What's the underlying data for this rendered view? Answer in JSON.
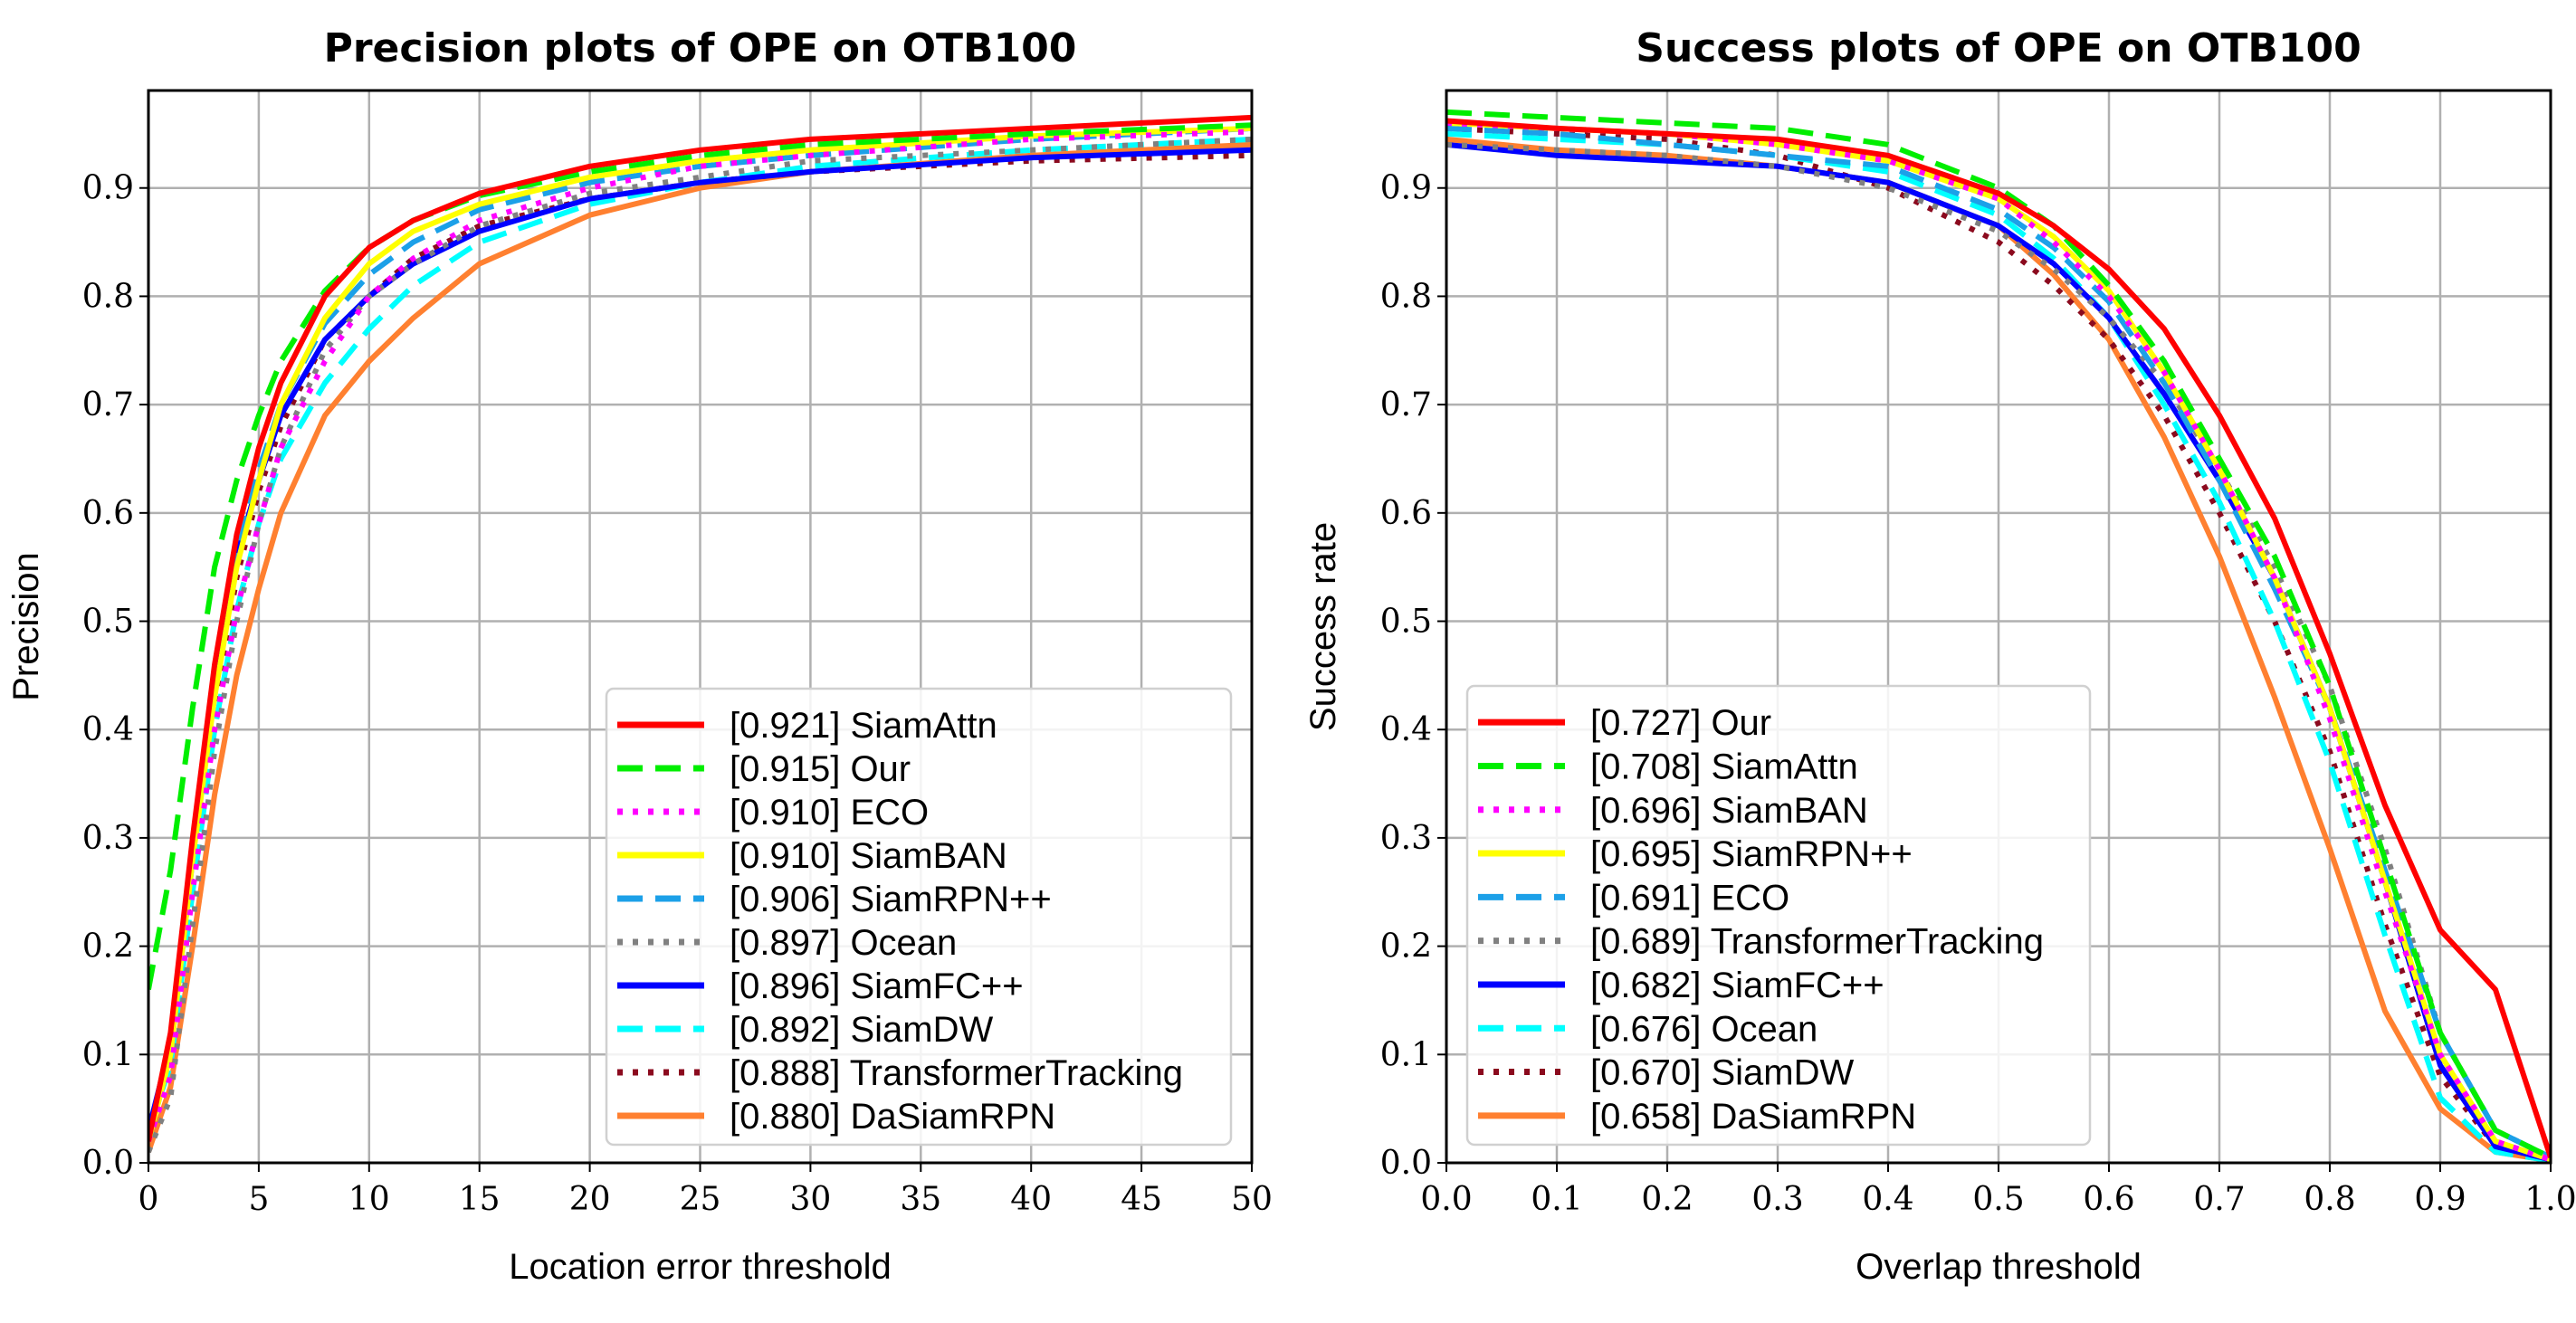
{
  "chart_data": [
    {
      "type": "line",
      "title": "Precision plots of OPE on OTB100",
      "xlabel": "Location error threshold",
      "ylabel": "Precision",
      "xlim": [
        0,
        50
      ],
      "ylim": [
        0,
        0.99
      ],
      "xticks": [
        "0",
        "5",
        "10",
        "15",
        "20",
        "25",
        "30",
        "35",
        "40",
        "45",
        "50"
      ],
      "xtick_values": [
        0,
        5,
        10,
        15,
        20,
        25,
        30,
        35,
        40,
        45,
        50
      ],
      "yticks": [
        "0.0",
        "0.1",
        "0.2",
        "0.3",
        "0.4",
        "0.5",
        "0.6",
        "0.7",
        "0.8",
        "0.9"
      ],
      "ytick_values": [
        0,
        0.1,
        0.2,
        0.3,
        0.4,
        0.5,
        0.6,
        0.7,
        0.8,
        0.9
      ],
      "grid": true,
      "legend_position": "lower-right",
      "x": [
        0,
        1,
        2,
        3,
        4,
        5,
        6,
        8,
        10,
        12,
        15,
        20,
        25,
        30,
        40,
        50
      ],
      "series": [
        {
          "name": "[0.921] SiamAttn",
          "color": "#ff0000",
          "style": "solid",
          "values": [
            0.02,
            0.12,
            0.3,
            0.46,
            0.58,
            0.66,
            0.72,
            0.8,
            0.845,
            0.87,
            0.895,
            0.92,
            0.935,
            0.945,
            0.955,
            0.965
          ]
        },
        {
          "name": "[0.915] Our",
          "color": "#00ee00",
          "style": "dashed",
          "values": [
            0.16,
            0.27,
            0.42,
            0.55,
            0.63,
            0.69,
            0.74,
            0.805,
            0.845,
            0.87,
            0.893,
            0.915,
            0.93,
            0.94,
            0.95,
            0.958
          ]
        },
        {
          "name": "[0.910] ECO",
          "color": "#ff00ff",
          "style": "dotted",
          "values": [
            0.02,
            0.08,
            0.25,
            0.4,
            0.51,
            0.59,
            0.66,
            0.74,
            0.8,
            0.835,
            0.87,
            0.9,
            0.92,
            0.93,
            0.945,
            0.952
          ]
        },
        {
          "name": "[0.910] SiamBAN",
          "color": "#ffff00",
          "style": "solid",
          "values": [
            0.02,
            0.1,
            0.28,
            0.43,
            0.55,
            0.63,
            0.7,
            0.78,
            0.83,
            0.86,
            0.885,
            0.91,
            0.925,
            0.935,
            0.948,
            0.955
          ]
        },
        {
          "name": "[0.906] SiamRPN++",
          "color": "#1ca0e8",
          "style": "dashed",
          "values": [
            0.02,
            0.1,
            0.28,
            0.44,
            0.56,
            0.64,
            0.7,
            0.775,
            0.82,
            0.85,
            0.88,
            0.905,
            0.92,
            0.93,
            0.945,
            0.955
          ]
        },
        {
          "name": "[0.897] Ocean",
          "color": "#808080",
          "style": "dotted",
          "values": [
            0.01,
            0.06,
            0.22,
            0.38,
            0.5,
            0.59,
            0.66,
            0.75,
            0.8,
            0.83,
            0.865,
            0.895,
            0.91,
            0.925,
            0.935,
            0.945
          ]
        },
        {
          "name": "[0.896] SiamFC++",
          "color": "#0000ff",
          "style": "solid",
          "values": [
            0.03,
            0.11,
            0.29,
            0.45,
            0.56,
            0.63,
            0.69,
            0.76,
            0.8,
            0.83,
            0.86,
            0.89,
            0.905,
            0.915,
            0.928,
            0.935
          ]
        },
        {
          "name": "[0.892] SiamDW",
          "color": "#00ffff",
          "style": "dashed",
          "values": [
            0.03,
            0.09,
            0.25,
            0.4,
            0.51,
            0.59,
            0.65,
            0.72,
            0.77,
            0.81,
            0.85,
            0.885,
            0.905,
            0.92,
            0.935,
            0.945
          ]
        },
        {
          "name": "[0.888] TransformerTracking",
          "color": "#8b0a1e",
          "style": "dotted",
          "values": [
            0.02,
            0.09,
            0.27,
            0.42,
            0.54,
            0.62,
            0.68,
            0.76,
            0.8,
            0.835,
            0.865,
            0.89,
            0.905,
            0.915,
            0.925,
            0.93
          ]
        },
        {
          "name": "[0.880] DaSiamRPN",
          "color": "#ff8030",
          "style": "solid",
          "values": [
            0.01,
            0.07,
            0.2,
            0.34,
            0.45,
            0.53,
            0.6,
            0.69,
            0.74,
            0.78,
            0.83,
            0.875,
            0.9,
            0.915,
            0.93,
            0.94
          ]
        }
      ]
    },
    {
      "type": "line",
      "title": "Success plots of OPE on OTB100",
      "xlabel": "Overlap threshold",
      "ylabel": "Success rate",
      "xlim": [
        0,
        1
      ],
      "ylim": [
        0,
        0.99
      ],
      "xticks": [
        "0.0",
        "0.1",
        "0.2",
        "0.3",
        "0.4",
        "0.5",
        "0.6",
        "0.7",
        "0.8",
        "0.9",
        "1.0"
      ],
      "xtick_values": [
        0,
        0.1,
        0.2,
        0.3,
        0.4,
        0.5,
        0.6,
        0.7,
        0.8,
        0.9,
        1.0
      ],
      "yticks": [
        "0.0",
        "0.1",
        "0.2",
        "0.3",
        "0.4",
        "0.5",
        "0.6",
        "0.7",
        "0.8",
        "0.9"
      ],
      "ytick_values": [
        0,
        0.1,
        0.2,
        0.3,
        0.4,
        0.5,
        0.6,
        0.7,
        0.8,
        0.9
      ],
      "grid": true,
      "legend_position": "lower-left",
      "x": [
        0,
        0.1,
        0.2,
        0.3,
        0.4,
        0.5,
        0.55,
        0.6,
        0.65,
        0.7,
        0.75,
        0.8,
        0.85,
        0.9,
        0.95,
        1.0
      ],
      "series": [
        {
          "name": "[0.727] Our",
          "color": "#ff0000",
          "style": "solid",
          "values": [
            0.962,
            0.955,
            0.95,
            0.945,
            0.93,
            0.895,
            0.865,
            0.825,
            0.77,
            0.69,
            0.595,
            0.47,
            0.33,
            0.215,
            0.16,
            0.005
          ]
        },
        {
          "name": "[0.708] SiamAttn",
          "color": "#00ee00",
          "style": "dashed",
          "values": [
            0.97,
            0.965,
            0.96,
            0.955,
            0.94,
            0.9,
            0.865,
            0.81,
            0.74,
            0.65,
            0.56,
            0.44,
            0.28,
            0.12,
            0.03,
            0.005
          ]
        },
        {
          "name": "[0.696] SiamBAN",
          "color": "#ff00ff",
          "style": "dotted",
          "values": [
            0.96,
            0.955,
            0.95,
            0.94,
            0.925,
            0.89,
            0.85,
            0.8,
            0.73,
            0.64,
            0.54,
            0.41,
            0.25,
            0.1,
            0.02,
            0.003
          ]
        },
        {
          "name": "[0.695] SiamRPN++",
          "color": "#ffff00",
          "style": "solid",
          "values": [
            0.96,
            0.955,
            0.95,
            0.94,
            0.925,
            0.89,
            0.855,
            0.805,
            0.73,
            0.64,
            0.54,
            0.42,
            0.26,
            0.1,
            0.02,
            0.003
          ]
        },
        {
          "name": "[0.691] ECO",
          "color": "#1ca0e8",
          "style": "dashed",
          "values": [
            0.955,
            0.95,
            0.94,
            0.93,
            0.92,
            0.88,
            0.845,
            0.795,
            0.72,
            0.63,
            0.53,
            0.42,
            0.27,
            0.12,
            0.03,
            0.005
          ]
        },
        {
          "name": "[0.689] TransformerTracking",
          "color": "#808080",
          "style": "dotted",
          "values": [
            0.94,
            0.935,
            0.93,
            0.92,
            0.9,
            0.86,
            0.825,
            0.78,
            0.72,
            0.64,
            0.55,
            0.44,
            0.29,
            0.12,
            0.03,
            0.005
          ]
        },
        {
          "name": "[0.682] SiamFC++",
          "color": "#0000ff",
          "style": "solid",
          "values": [
            0.94,
            0.93,
            0.925,
            0.92,
            0.905,
            0.865,
            0.83,
            0.78,
            0.71,
            0.63,
            0.54,
            0.42,
            0.26,
            0.09,
            0.015,
            0.003
          ]
        },
        {
          "name": "[0.676] Ocean",
          "color": "#00ffff",
          "style": "dashed",
          "values": [
            0.95,
            0.945,
            0.94,
            0.93,
            0.915,
            0.875,
            0.835,
            0.78,
            0.7,
            0.61,
            0.5,
            0.37,
            0.21,
            0.06,
            0.01,
            0.002
          ]
        },
        {
          "name": "[0.670] SiamDW",
          "color": "#8b0a1e",
          "style": "dotted",
          "values": [
            0.955,
            0.95,
            0.945,
            0.93,
            0.9,
            0.85,
            0.81,
            0.76,
            0.69,
            0.6,
            0.5,
            0.38,
            0.22,
            0.08,
            0.015,
            0.003
          ]
        },
        {
          "name": "[0.658] DaSiamRPN",
          "color": "#ff8030",
          "style": "solid",
          "values": [
            0.945,
            0.935,
            0.93,
            0.92,
            0.905,
            0.865,
            0.82,
            0.76,
            0.67,
            0.56,
            0.43,
            0.29,
            0.14,
            0.05,
            0.01,
            0.002
          ]
        }
      ]
    }
  ]
}
